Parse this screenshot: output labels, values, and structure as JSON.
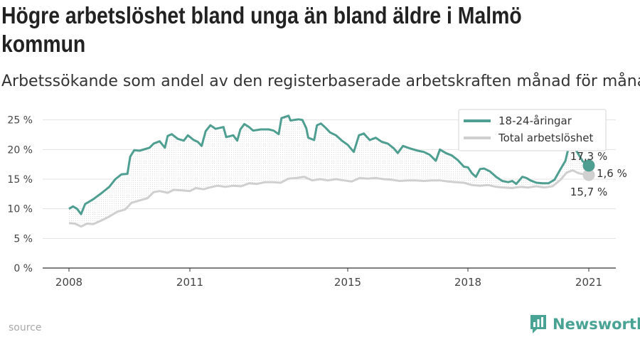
{
  "header": {
    "title_line1": "Högre arbetslöshet bland unga än bland äldre i Malmö",
    "title_line2": "kommun",
    "subtitle": "Arbetssökande som andel av den registerbaserade arbetskraften månad för månad."
  },
  "footer": {
    "source": "source",
    "brand": "Newsworthy",
    "brand_icon": "bar-chart-logo-icon"
  },
  "chart_data": {
    "type": "line",
    "x_ticks": [
      "2008",
      "2011",
      "2015",
      "2018",
      "2021"
    ],
    "y_ticks": [
      "0 %",
      "5 %",
      "10 %",
      "15 %",
      "20 %",
      "25 %"
    ],
    "ylim": [
      0,
      27
    ],
    "xlim": [
      2007.5,
      2021.6
    ],
    "grid": true,
    "legend_position": "top-right",
    "gap_label": "1,6 %",
    "series": [
      {
        "name": "18-24-åringar",
        "color": "#4e9e91",
        "end_label": "17,3 %",
        "points": [
          [
            2008.0,
            10.0
          ],
          [
            2008.1,
            10.4
          ],
          [
            2008.2,
            10.0
          ],
          [
            2008.3,
            9.1
          ],
          [
            2008.4,
            10.8
          ],
          [
            2008.6,
            11.6
          ],
          [
            2008.8,
            12.6
          ],
          [
            2009.0,
            13.7
          ],
          [
            2009.15,
            15.0
          ],
          [
            2009.3,
            15.8
          ],
          [
            2009.45,
            15.9
          ],
          [
            2009.52,
            18.8
          ],
          [
            2009.62,
            19.9
          ],
          [
            2009.75,
            19.8
          ],
          [
            2009.9,
            20.1
          ],
          [
            2010.0,
            20.3
          ],
          [
            2010.1,
            21.0
          ],
          [
            2010.25,
            21.4
          ],
          [
            2010.38,
            20.3
          ],
          [
            2010.45,
            22.3
          ],
          [
            2010.55,
            22.6
          ],
          [
            2010.7,
            21.8
          ],
          [
            2010.85,
            21.5
          ],
          [
            2010.95,
            22.4
          ],
          [
            2011.1,
            21.6
          ],
          [
            2011.2,
            21.3
          ],
          [
            2011.3,
            20.6
          ],
          [
            2011.4,
            23.1
          ],
          [
            2011.52,
            24.1
          ],
          [
            2011.65,
            23.5
          ],
          [
            2011.85,
            23.8
          ],
          [
            2011.92,
            22.1
          ],
          [
            2012.1,
            22.4
          ],
          [
            2012.2,
            21.5
          ],
          [
            2012.28,
            23.4
          ],
          [
            2012.38,
            24.3
          ],
          [
            2012.5,
            23.8
          ],
          [
            2012.6,
            23.2
          ],
          [
            2012.8,
            23.4
          ],
          [
            2013.0,
            23.4
          ],
          [
            2013.12,
            23.2
          ],
          [
            2013.25,
            22.6
          ],
          [
            2013.32,
            25.3
          ],
          [
            2013.5,
            25.7
          ],
          [
            2013.55,
            24.9
          ],
          [
            2013.75,
            25.1
          ],
          [
            2013.85,
            25.0
          ],
          [
            2013.95,
            23.6
          ],
          [
            2014.0,
            22.0
          ],
          [
            2014.15,
            21.6
          ],
          [
            2014.22,
            24.1
          ],
          [
            2014.32,
            24.4
          ],
          [
            2014.45,
            23.6
          ],
          [
            2014.55,
            22.9
          ],
          [
            2014.7,
            22.4
          ],
          [
            2014.85,
            21.5
          ],
          [
            2015.0,
            20.8
          ],
          [
            2015.15,
            19.6
          ],
          [
            2015.28,
            22.4
          ],
          [
            2015.4,
            22.7
          ],
          [
            2015.55,
            21.6
          ],
          [
            2015.7,
            22.0
          ],
          [
            2015.85,
            21.3
          ],
          [
            2016.0,
            21.0
          ],
          [
            2016.15,
            20.2
          ],
          [
            2016.25,
            19.4
          ],
          [
            2016.38,
            20.6
          ],
          [
            2016.55,
            20.2
          ],
          [
            2016.75,
            19.8
          ],
          [
            2016.9,
            19.6
          ],
          [
            2017.05,
            19.1
          ],
          [
            2017.2,
            18.1
          ],
          [
            2017.3,
            20.0
          ],
          [
            2017.45,
            19.4
          ],
          [
            2017.6,
            19.0
          ],
          [
            2017.75,
            18.2
          ],
          [
            2017.9,
            17.1
          ],
          [
            2018.0,
            17.0
          ],
          [
            2018.1,
            16.0
          ],
          [
            2018.2,
            15.4
          ],
          [
            2018.3,
            16.7
          ],
          [
            2018.4,
            16.8
          ],
          [
            2018.55,
            16.3
          ],
          [
            2018.7,
            15.4
          ],
          [
            2018.85,
            14.7
          ],
          [
            2019.0,
            14.5
          ],
          [
            2019.1,
            14.7
          ],
          [
            2019.2,
            14.2
          ],
          [
            2019.35,
            15.4
          ],
          [
            2019.45,
            15.2
          ],
          [
            2019.55,
            14.8
          ],
          [
            2019.7,
            14.4
          ],
          [
            2019.85,
            14.3
          ],
          [
            2020.0,
            14.3
          ],
          [
            2020.15,
            14.9
          ],
          [
            2020.3,
            16.7
          ],
          [
            2020.42,
            18.1
          ],
          [
            2020.5,
            20.4
          ],
          [
            2020.58,
            20.7
          ],
          [
            2020.7,
            19.7
          ],
          [
            2020.85,
            18.0
          ],
          [
            2021.0,
            17.3
          ]
        ]
      },
      {
        "name": "Total arbetslöshet",
        "color": "#cfcfcf",
        "end_label": "15,7 %",
        "points": [
          [
            2008.0,
            7.6
          ],
          [
            2008.15,
            7.5
          ],
          [
            2008.3,
            7.0
          ],
          [
            2008.45,
            7.5
          ],
          [
            2008.6,
            7.4
          ],
          [
            2008.8,
            8.0
          ],
          [
            2009.0,
            8.7
          ],
          [
            2009.2,
            9.5
          ],
          [
            2009.4,
            9.9
          ],
          [
            2009.55,
            11.0
          ],
          [
            2009.75,
            11.4
          ],
          [
            2009.95,
            11.8
          ],
          [
            2010.1,
            12.8
          ],
          [
            2010.25,
            13.0
          ],
          [
            2010.45,
            12.7
          ],
          [
            2010.6,
            13.2
          ],
          [
            2010.8,
            13.1
          ],
          [
            2011.0,
            13.0
          ],
          [
            2011.15,
            13.5
          ],
          [
            2011.35,
            13.3
          ],
          [
            2011.5,
            13.6
          ],
          [
            2011.7,
            13.9
          ],
          [
            2011.9,
            13.7
          ],
          [
            2012.1,
            13.9
          ],
          [
            2012.3,
            13.8
          ],
          [
            2012.5,
            14.3
          ],
          [
            2012.7,
            14.2
          ],
          [
            2012.9,
            14.5
          ],
          [
            2013.1,
            14.5
          ],
          [
            2013.3,
            14.4
          ],
          [
            2013.5,
            15.1
          ],
          [
            2013.7,
            15.2
          ],
          [
            2013.9,
            15.4
          ],
          [
            2014.1,
            14.8
          ],
          [
            2014.3,
            15.0
          ],
          [
            2014.5,
            14.8
          ],
          [
            2014.7,
            15.0
          ],
          [
            2014.9,
            14.8
          ],
          [
            2015.1,
            14.6
          ],
          [
            2015.3,
            15.2
          ],
          [
            2015.5,
            15.1
          ],
          [
            2015.7,
            15.2
          ],
          [
            2015.9,
            15.0
          ],
          [
            2016.1,
            14.9
          ],
          [
            2016.3,
            14.7
          ],
          [
            2016.5,
            14.8
          ],
          [
            2016.7,
            14.8
          ],
          [
            2016.9,
            14.7
          ],
          [
            2017.1,
            14.8
          ],
          [
            2017.3,
            14.8
          ],
          [
            2017.5,
            14.6
          ],
          [
            2017.7,
            14.5
          ],
          [
            2017.9,
            14.4
          ],
          [
            2018.1,
            14.0
          ],
          [
            2018.3,
            13.9
          ],
          [
            2018.5,
            14.0
          ],
          [
            2018.7,
            13.7
          ],
          [
            2018.9,
            13.6
          ],
          [
            2019.1,
            13.5
          ],
          [
            2019.3,
            13.7
          ],
          [
            2019.5,
            13.6
          ],
          [
            2019.7,
            13.8
          ],
          [
            2019.9,
            13.6
          ],
          [
            2020.1,
            13.8
          ],
          [
            2020.3,
            14.9
          ],
          [
            2020.45,
            16.1
          ],
          [
            2020.6,
            16.5
          ],
          [
            2020.75,
            16.0
          ],
          [
            2020.9,
            15.8
          ],
          [
            2021.0,
            15.7
          ]
        ]
      }
    ]
  }
}
